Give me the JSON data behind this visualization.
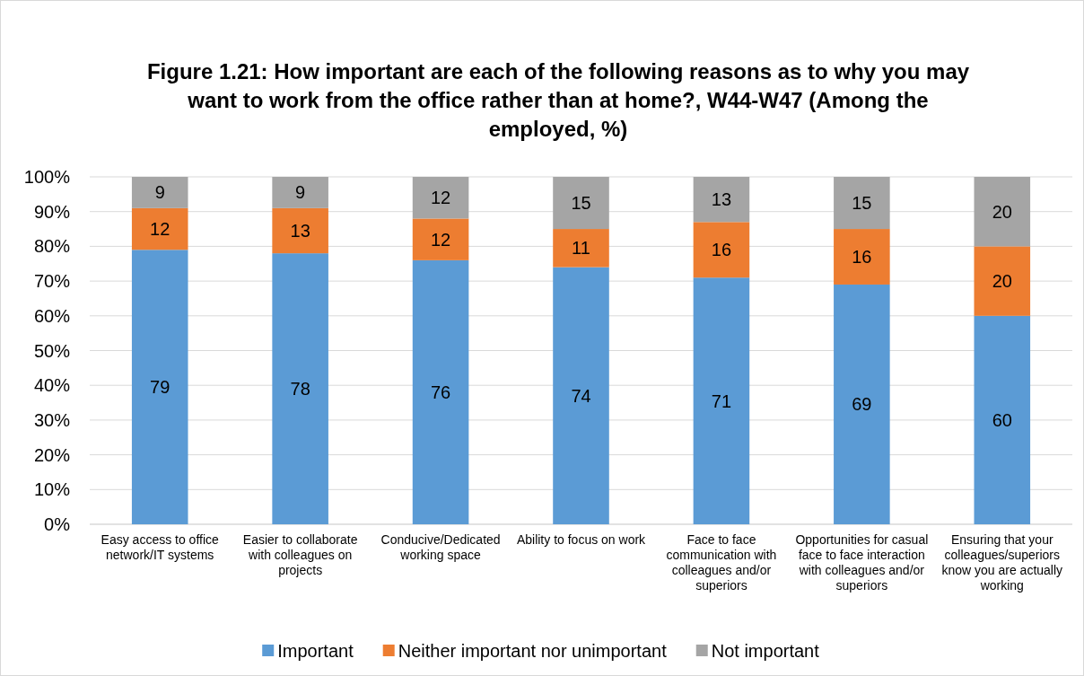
{
  "chart_data": {
    "type": "bar",
    "stacked": true,
    "title": "Figure 1.21: How important are each of the following reasons as to why you may want to work from the office rather than at home?, W44-W47 (Among the employed, %)",
    "categories": [
      "Easy access to office network/IT systems",
      "Easier to collaborate with colleagues on projects",
      "Conducive/Dedicated working space",
      "Ability to focus on work",
      "Face to face communication with colleagues and/or superiors",
      "Opportunities for casual face to face interaction with colleagues and/or superiors",
      "Ensuring that your colleagues/superiors know you are actually working"
    ],
    "series": [
      {
        "name": "Important",
        "color": "#5b9bd5",
        "values": [
          79,
          78,
          76,
          74,
          71,
          69,
          60
        ]
      },
      {
        "name": "Neither important nor unimportant",
        "color": "#ed7d31",
        "values": [
          12,
          13,
          12,
          11,
          16,
          16,
          20
        ]
      },
      {
        "name": "Not important",
        "color": "#a5a5a5",
        "values": [
          9,
          9,
          12,
          15,
          13,
          15,
          20
        ]
      }
    ],
    "ylim": [
      0,
      100
    ],
    "yticks": [
      {
        "value": 0,
        "label": "0%"
      },
      {
        "value": 10,
        "label": "10%"
      },
      {
        "value": 20,
        "label": "20%"
      },
      {
        "value": 30,
        "label": "30%"
      },
      {
        "value": 40,
        "label": "40%"
      },
      {
        "value": 50,
        "label": "50%"
      },
      {
        "value": 60,
        "label": "60%"
      },
      {
        "value": 70,
        "label": "70%"
      },
      {
        "value": 80,
        "label": "80%"
      },
      {
        "value": 90,
        "label": "90%"
      },
      {
        "value": 100,
        "label": "100%"
      }
    ],
    "grid": "y",
    "legend": "bottom",
    "data_labels": true
  }
}
